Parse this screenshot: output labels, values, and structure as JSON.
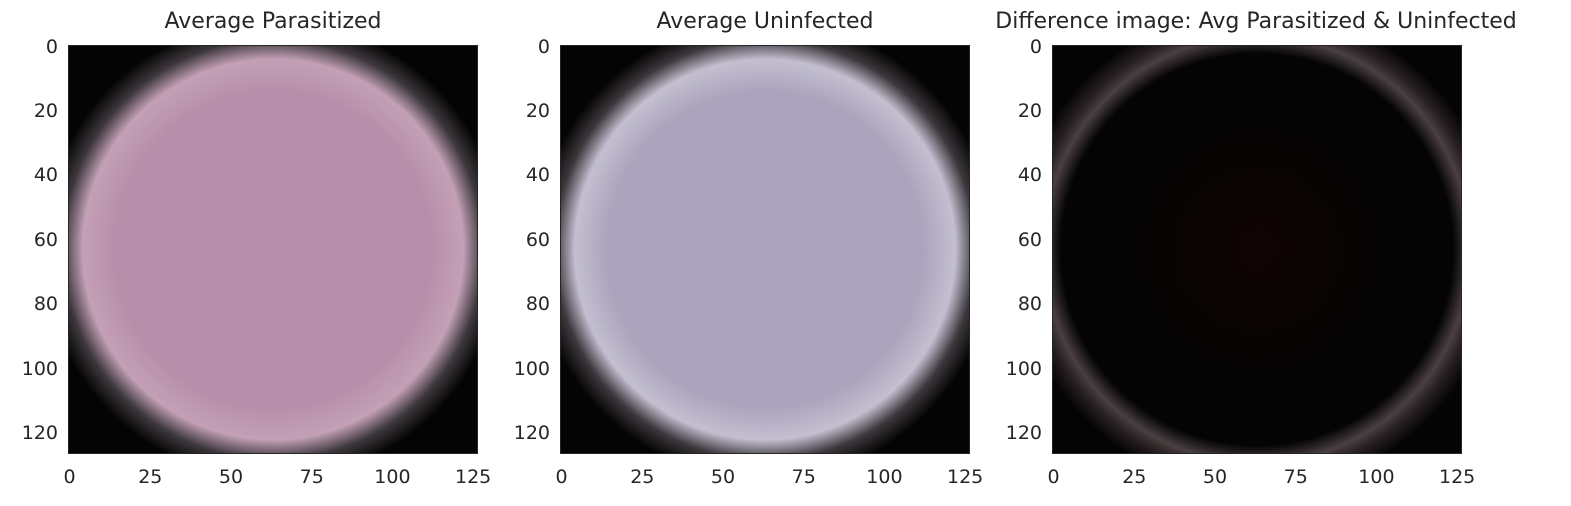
{
  "chart_data": [
    {
      "type": "heatmap",
      "title": "Average Parasitized",
      "xticks": [
        "0",
        "25",
        "50",
        "75",
        "100",
        "125"
      ],
      "yticks": [
        "0",
        "20",
        "40",
        "60",
        "80",
        "100",
        "120"
      ],
      "xlim": [
        0,
        127
      ],
      "ylim": [
        127,
        0
      ],
      "image_description": "averaged cell image",
      "colors": {
        "background": "#050404",
        "center": "#b88fab",
        "edge": "#c3a0b6"
      }
    },
    {
      "type": "heatmap",
      "title": "Average Uninfected",
      "xticks": [
        "0",
        "25",
        "50",
        "75",
        "100",
        "125"
      ],
      "yticks": [
        "0",
        "20",
        "40",
        "60",
        "80",
        "100",
        "120"
      ],
      "xlim": [
        0,
        127
      ],
      "ylim": [
        127,
        0
      ],
      "image_description": "averaged cell image",
      "colors": {
        "background": "#050404",
        "center": "#aca4bd",
        "edge": "#c3bfd0"
      }
    },
    {
      "type": "heatmap",
      "title": "Difference image: Avg Parasitized & Uninfected",
      "xticks": [
        "0",
        "25",
        "50",
        "75",
        "100",
        "125"
      ],
      "yticks": [
        "0",
        "20",
        "40",
        "60",
        "80",
        "100",
        "120"
      ],
      "xlim": [
        0,
        127
      ],
      "ylim": [
        127,
        0
      ],
      "image_description": "difference image",
      "colors": {
        "background": "#050404",
        "center": "#110405",
        "edge": "#4a3f41"
      }
    }
  ]
}
